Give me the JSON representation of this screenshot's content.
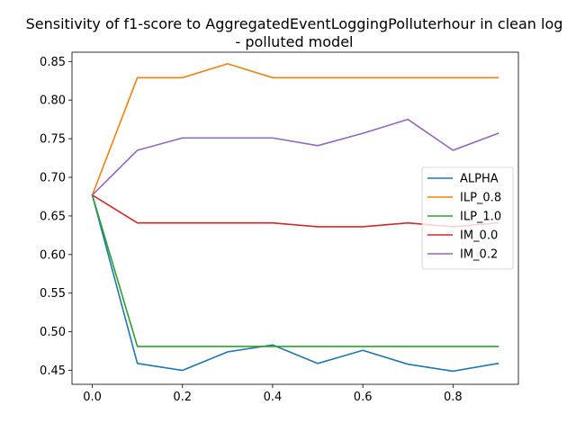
{
  "chart_data": {
    "type": "line",
    "title": "Sensitivity of f1-score to AggregatedEventLoggingPolluterhour in clean log",
    "subtitle": "- polluted model",
    "xlabel": "",
    "ylabel": "",
    "x": [
      0.0,
      0.1,
      0.2,
      0.3,
      0.4,
      0.5,
      0.6,
      0.7,
      0.8,
      0.9
    ],
    "xlim": [
      -0.045,
      0.945
    ],
    "ylim": [
      0.432,
      0.862
    ],
    "xticks": [
      0.0,
      0.2,
      0.4,
      0.6,
      0.8
    ],
    "xtick_labels": [
      "0.0",
      "0.2",
      "0.4",
      "0.6",
      "0.8"
    ],
    "yticks": [
      0.45,
      0.5,
      0.55,
      0.6,
      0.65,
      0.7,
      0.75,
      0.8,
      0.85
    ],
    "ytick_labels": [
      "0.45",
      "0.50",
      "0.55",
      "0.60",
      "0.65",
      "0.70",
      "0.75",
      "0.80",
      "0.85"
    ],
    "grid": false,
    "legend_position": "center-right",
    "series": [
      {
        "name": "ALPHA",
        "color": "#1f77b4",
        "values": [
          0.677,
          0.459,
          0.45,
          0.474,
          0.483,
          0.459,
          0.476,
          0.458,
          0.449,
          0.459
        ]
      },
      {
        "name": "ILP_0.8",
        "color": "#ff7f0e",
        "values": [
          0.677,
          0.829,
          0.829,
          0.847,
          0.829,
          0.829,
          0.829,
          0.829,
          0.829,
          0.829
        ]
      },
      {
        "name": "ILP_1.0",
        "color": "#2ca02c",
        "values": [
          0.677,
          0.481,
          0.481,
          0.481,
          0.481,
          0.481,
          0.481,
          0.481,
          0.481,
          0.481
        ]
      },
      {
        "name": "IM_0.0",
        "color": "#d62728",
        "values": [
          0.677,
          0.641,
          0.641,
          0.641,
          0.641,
          0.636,
          0.636,
          0.641,
          0.636,
          0.641
        ]
      },
      {
        "name": "IM_0.2",
        "color": "#9467bd",
        "values": [
          0.677,
          0.735,
          0.751,
          0.751,
          0.751,
          0.741,
          0.757,
          0.775,
          0.735,
          0.757
        ]
      }
    ]
  }
}
